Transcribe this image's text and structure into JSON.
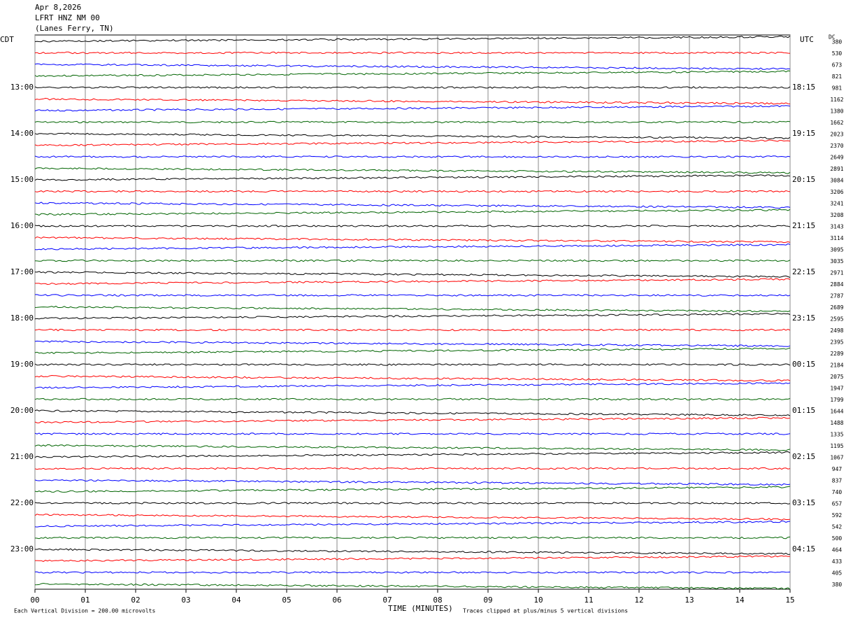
{
  "header": {
    "date": "Apr 8,2026",
    "station": "LFRT HNZ NM 00",
    "location": "(Lanes Ferry, TN)"
  },
  "left_axis": {
    "title": "CDT",
    "labels": [
      "13:00",
      "14:00",
      "15:00",
      "16:00",
      "17:00",
      "18:00",
      "19:00",
      "20:00",
      "21:00",
      "22:00",
      "23:00"
    ]
  },
  "right_axis": {
    "title": "UTC",
    "labels": [
      "18:15",
      "19:15",
      "20:15",
      "21:15",
      "22:15",
      "23:15",
      "00:15",
      "01:15",
      "02:15",
      "03:15",
      "04:15"
    ]
  },
  "dc": {
    "title": "DC",
    "values": [
      380,
      530,
      673,
      821,
      981,
      1162,
      1380,
      1662,
      2023,
      2370,
      2649,
      2891,
      3084,
      3206,
      3241,
      3208,
      3143,
      3114,
      3095,
      3035,
      2971,
      2884,
      2787,
      2689,
      2595,
      2498,
      2395,
      2289,
      2184,
      2075,
      1947,
      1799,
      1644,
      1488,
      1335,
      1195,
      1067,
      947,
      837,
      740,
      657,
      592,
      542,
      500,
      464,
      433,
      405,
      380
    ]
  },
  "x_axis": {
    "title": "TIME (MINUTES)",
    "ticks": [
      "00",
      "01",
      "02",
      "03",
      "04",
      "05",
      "06",
      "07",
      "08",
      "09",
      "10",
      "11",
      "12",
      "13",
      "14",
      "15"
    ]
  },
  "footer": {
    "scale": "Each Vertical Division =  200.00 microvolts",
    "clip": "Traces clipped at plus/minus 5 vertical divisions"
  },
  "trace_colors": [
    "#000000",
    "#ff0000",
    "#0000ff",
    "#006400"
  ]
}
